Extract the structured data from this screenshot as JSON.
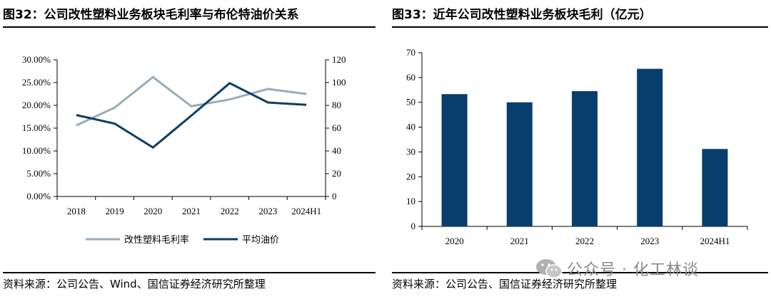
{
  "left": {
    "title": "图32：公司改性塑料业务板块毛利率与布伦特油价关系",
    "source": "资料来源：公司公告、Wind、国信证券经济研究所整理"
  },
  "right": {
    "title": "图33：近年公司改性塑料业务板块毛利（亿元）",
    "source": "资料来源：公司公告、国信证券经济研究所整理"
  },
  "watermark": {
    "text": "公众号 · 化工林谈",
    "icon": "wechat-icon"
  },
  "colors": {
    "margin_line": "#9aabbb",
    "oil_line": "#0d3d66",
    "bar": "#073e6e"
  },
  "chart_data": [
    {
      "type": "line",
      "categories": [
        "2018",
        "2019",
        "2020",
        "2021",
        "2022",
        "2023",
        "2024H1"
      ],
      "series": [
        {
          "name": "改性塑料毛利率",
          "axis": "left",
          "values": [
            0.156,
            0.195,
            0.262,
            0.198,
            0.213,
            0.236,
            0.225
          ]
        },
        {
          "name": "平均油价",
          "axis": "right",
          "values": [
            71.5,
            64,
            43,
            71,
            99.5,
            82.5,
            80.5
          ]
        }
      ],
      "y_left": {
        "ylim": [
          0,
          0.3
        ],
        "ticks": [
          "0.00%",
          "5.00%",
          "10.00%",
          "15.00%",
          "20.00%",
          "25.00%",
          "30.00%"
        ]
      },
      "y_right": {
        "ylim": [
          0,
          120
        ],
        "ticks": [
          "0",
          "20",
          "40",
          "60",
          "80",
          "100",
          "120"
        ]
      },
      "legend": "bottom"
    },
    {
      "type": "bar",
      "categories": [
        "2020",
        "2021",
        "2022",
        "2023",
        "2024H1"
      ],
      "values": [
        53.3,
        50.0,
        54.5,
        63.5,
        31.2
      ],
      "ylim": [
        0,
        70
      ],
      "yticks": [
        "0",
        "10",
        "20",
        "30",
        "40",
        "50",
        "60",
        "70"
      ]
    }
  ]
}
